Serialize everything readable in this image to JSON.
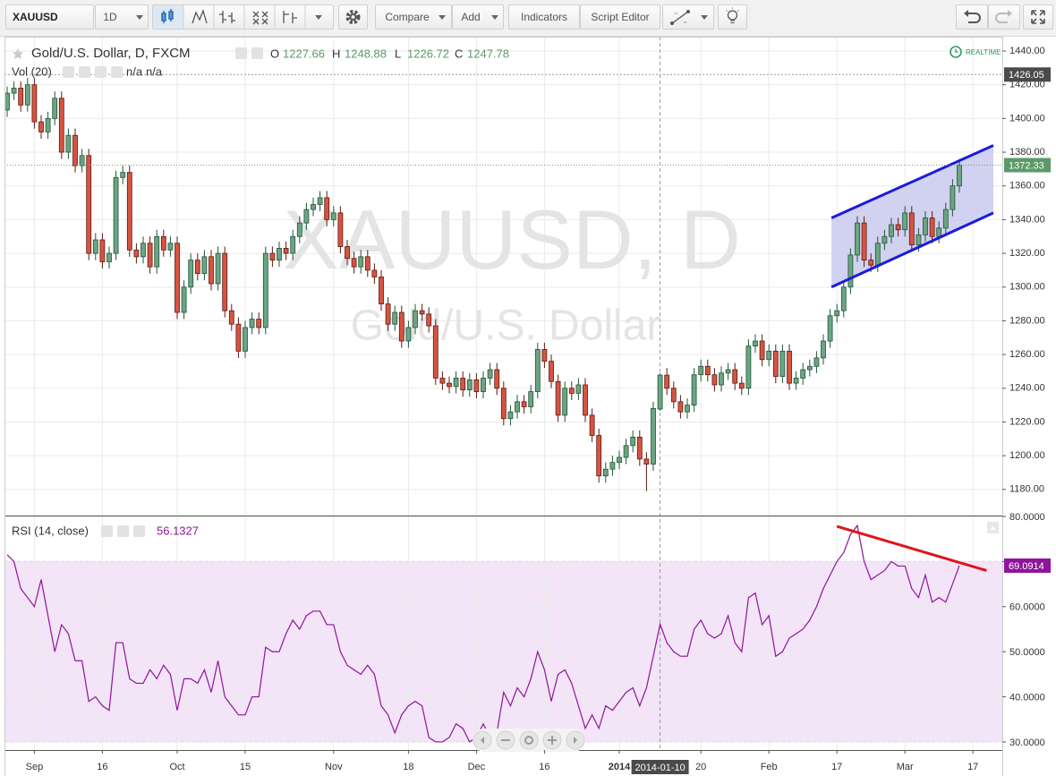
{
  "toolbar": {
    "symbol": "XAUUSD",
    "interval": "1D",
    "buttons": [
      "Compare",
      "Add",
      "Indicators",
      "Script Editor"
    ]
  },
  "chart_data": [
    {
      "type": "candlestick",
      "title": "Gold/U.S. Dollar, D, FXCM",
      "watermark": "XAUUSD, D",
      "watermark_subtitle": "Gold/U.S. Dollar",
      "ohlc_labels": [
        "O",
        "H",
        "L",
        "C"
      ],
      "volume_label": "Vol (20)",
      "volume_values": [
        "n/a",
        "n/a"
      ],
      "realtime_label": "REALTIME",
      "colors": {
        "up": "#6ba583",
        "down": "#d75442",
        "up_border": "#225437",
        "down_border": "#5b1a13"
      },
      "candles": [
        [
          1405,
          1419,
          1401,
          1415
        ],
        [
          1415,
          1422,
          1411,
          1418
        ],
        [
          1418,
          1422,
          1404,
          1408
        ],
        [
          1408,
          1424,
          1404,
          1420
        ],
        [
          1420,
          1424,
          1394,
          1398
        ],
        [
          1398,
          1402,
          1388,
          1392
        ],
        [
          1392,
          1404,
          1388,
          1400
        ],
        [
          1400,
          1416,
          1396,
          1412
        ],
        [
          1412,
          1416,
          1376,
          1380
        ],
        [
          1380,
          1394,
          1376,
          1390
        ],
        [
          1390,
          1394,
          1368,
          1372
        ],
        [
          1372,
          1382,
          1368,
          1378
        ],
        [
          1378,
          1382,
          1316,
          1320
        ],
        [
          1320,
          1332,
          1316,
          1328
        ],
        [
          1328,
          1332,
          1311,
          1315
        ],
        [
          1315,
          1324,
          1311,
          1320
        ],
        [
          1320,
          1369,
          1316,
          1365
        ],
        [
          1365,
          1372,
          1361,
          1368
        ],
        [
          1368,
          1372,
          1318,
          1322
        ],
        [
          1322,
          1326,
          1314,
          1318
        ],
        [
          1318,
          1330,
          1314,
          1326
        ],
        [
          1326,
          1330,
          1308,
          1312
        ],
        [
          1312,
          1334,
          1308,
          1330
        ],
        [
          1330,
          1334,
          1318,
          1322
        ],
        [
          1322,
          1330,
          1318,
          1326
        ],
        [
          1326,
          1330,
          1281,
          1285
        ],
        [
          1285,
          1304,
          1281,
          1300
        ],
        [
          1300,
          1320,
          1296,
          1316
        ],
        [
          1316,
          1320,
          1304,
          1308
        ],
        [
          1308,
          1322,
          1304,
          1318
        ],
        [
          1318,
          1322,
          1298,
          1302
        ],
        [
          1302,
          1324,
          1298,
          1320
        ],
        [
          1320,
          1324,
          1282,
          1286
        ],
        [
          1286,
          1290,
          1274,
          1278
        ],
        [
          1278,
          1282,
          1258,
          1262
        ],
        [
          1262,
          1280,
          1258,
          1276
        ],
        [
          1276,
          1285,
          1272,
          1281
        ],
        [
          1281,
          1285,
          1272,
          1276
        ],
        [
          1276,
          1324,
          1272,
          1320
        ],
        [
          1320,
          1324,
          1312,
          1316
        ],
        [
          1316,
          1327,
          1312,
          1323
        ],
        [
          1323,
          1327,
          1316,
          1320
        ],
        [
          1320,
          1334,
          1316,
          1330
        ],
        [
          1330,
          1342,
          1326,
          1338
        ],
        [
          1338,
          1350,
          1334,
          1346
        ],
        [
          1346,
          1353,
          1342,
          1349
        ],
        [
          1349,
          1357,
          1345,
          1353
        ],
        [
          1353,
          1357,
          1336,
          1340
        ],
        [
          1340,
          1348,
          1336,
          1344
        ],
        [
          1344,
          1348,
          1320,
          1324
        ],
        [
          1324,
          1328,
          1313,
          1317
        ],
        [
          1317,
          1321,
          1308,
          1312
        ],
        [
          1312,
          1322,
          1308,
          1318
        ],
        [
          1318,
          1322,
          1306,
          1310
        ],
        [
          1310,
          1314,
          1302,
          1306
        ],
        [
          1306,
          1310,
          1286,
          1290
        ],
        [
          1290,
          1294,
          1274,
          1278
        ],
        [
          1278,
          1289,
          1274,
          1285
        ],
        [
          1285,
          1289,
          1264,
          1268
        ],
        [
          1268,
          1280,
          1264,
          1276
        ],
        [
          1276,
          1290,
          1272,
          1286
        ],
        [
          1286,
          1290,
          1280,
          1284
        ],
        [
          1284,
          1288,
          1273,
          1277
        ],
        [
          1277,
          1281,
          1242,
          1246
        ],
        [
          1246,
          1250,
          1239,
          1243
        ],
        [
          1243,
          1247,
          1237,
          1241
        ],
        [
          1241,
          1250,
          1237,
          1246
        ],
        [
          1246,
          1250,
          1235,
          1239
        ],
        [
          1239,
          1249,
          1235,
          1245
        ],
        [
          1245,
          1249,
          1234,
          1238
        ],
        [
          1238,
          1250,
          1234,
          1246
        ],
        [
          1246,
          1255,
          1242,
          1251
        ],
        [
          1251,
          1255,
          1236,
          1240
        ],
        [
          1240,
          1244,
          1218,
          1222
        ],
        [
          1222,
          1230,
          1218,
          1226
        ],
        [
          1226,
          1236,
          1222,
          1232
        ],
        [
          1232,
          1236,
          1225,
          1229
        ],
        [
          1229,
          1242,
          1225,
          1238
        ],
        [
          1238,
          1267,
          1234,
          1263
        ],
        [
          1263,
          1267,
          1252,
          1256
        ],
        [
          1256,
          1260,
          1240,
          1244
        ],
        [
          1244,
          1248,
          1220,
          1224
        ],
        [
          1224,
          1244,
          1220,
          1240
        ],
        [
          1240,
          1244,
          1233,
          1237
        ],
        [
          1237,
          1246,
          1233,
          1242
        ],
        [
          1242,
          1246,
          1220,
          1224
        ],
        [
          1224,
          1228,
          1208,
          1212
        ],
        [
          1212,
          1216,
          1184,
          1188
        ],
        [
          1188,
          1196,
          1184,
          1192
        ],
        [
          1192,
          1200,
          1188,
          1196
        ],
        [
          1196,
          1203,
          1192,
          1199
        ],
        [
          1199,
          1210,
          1195,
          1206
        ],
        [
          1206,
          1215,
          1202,
          1211
        ],
        [
          1211,
          1215,
          1194,
          1198
        ],
        [
          1198,
          1202,
          1179,
          1195
        ],
        [
          1195,
          1232,
          1191,
          1228
        ],
        [
          1227.66,
          1248.88,
          1226.72,
          1247.78
        ],
        [
          1247.78,
          1252,
          1236,
          1240
        ],
        [
          1240,
          1244,
          1228,
          1232
        ],
        [
          1232,
          1236,
          1222,
          1226
        ],
        [
          1226,
          1234,
          1222,
          1230
        ],
        [
          1230,
          1252,
          1226,
          1248
        ],
        [
          1248,
          1257,
          1244,
          1253
        ],
        [
          1253,
          1257,
          1244,
          1248
        ],
        [
          1248,
          1252,
          1238,
          1242
        ],
        [
          1242,
          1253,
          1238,
          1249
        ],
        [
          1249,
          1255,
          1245,
          1251
        ],
        [
          1251,
          1255,
          1239,
          1243
        ],
        [
          1243,
          1247,
          1236,
          1240
        ],
        [
          1240,
          1269,
          1236,
          1265
        ],
        [
          1265,
          1272,
          1261,
          1268
        ],
        [
          1268,
          1272,
          1253,
          1257
        ],
        [
          1257,
          1266,
          1253,
          1262
        ],
        [
          1262,
          1266,
          1243,
          1247
        ],
        [
          1247,
          1266,
          1243,
          1262
        ],
        [
          1262,
          1266,
          1239,
          1243
        ],
        [
          1243,
          1250,
          1239,
          1246
        ],
        [
          1246,
          1255,
          1242,
          1251
        ],
        [
          1251,
          1257,
          1247,
          1253
        ],
        [
          1253,
          1262,
          1249,
          1258
        ],
        [
          1258,
          1272,
          1254,
          1268
        ],
        [
          1268,
          1287,
          1264,
          1283
        ],
        [
          1283,
          1290,
          1279,
          1286
        ],
        [
          1286,
          1304,
          1282,
          1300
        ],
        [
          1300,
          1323,
          1296,
          1319
        ],
        [
          1319,
          1342,
          1315,
          1338
        ],
        [
          1338,
          1342,
          1312,
          1316
        ],
        [
          1316,
          1320,
          1309,
          1313
        ],
        [
          1313,
          1330,
          1309,
          1326
        ],
        [
          1326,
          1334,
          1322,
          1330
        ],
        [
          1330,
          1341,
          1326,
          1337
        ],
        [
          1337,
          1341,
          1330,
          1334
        ],
        [
          1334,
          1348,
          1330,
          1344
        ],
        [
          1344,
          1348,
          1321,
          1325
        ],
        [
          1325,
          1335,
          1321,
          1331
        ],
        [
          1331,
          1345,
          1327,
          1341
        ],
        [
          1341,
          1345,
          1326,
          1330
        ],
        [
          1330,
          1339,
          1326,
          1335
        ],
        [
          1335,
          1350,
          1331,
          1346
        ],
        [
          1346,
          1364,
          1342,
          1360
        ],
        [
          1360,
          1376,
          1356,
          1372.33
        ]
      ],
      "ylim": [
        1164.5,
        1448.5
      ],
      "yticks": [
        {
          "value": 1180,
          "label": "1180.00"
        },
        {
          "value": 1200,
          "label": "1200.00"
        },
        {
          "value": 1220,
          "label": "1220.00"
        },
        {
          "value": 1240,
          "label": "1240.00"
        },
        {
          "value": 1260,
          "label": "1260.00"
        },
        {
          "value": 1280,
          "label": "1280.00"
        },
        {
          "value": 1300,
          "label": "1300.00"
        },
        {
          "value": 1320,
          "label": "1320.00"
        },
        {
          "value": 1340,
          "label": "1340.00"
        },
        {
          "value": 1360,
          "label": "1360.00"
        },
        {
          "value": 1380,
          "label": "1380.00"
        },
        {
          "value": 1400,
          "label": "1400.00"
        },
        {
          "value": 1420,
          "label": "1420.00"
        },
        {
          "value": 1440,
          "label": "1440.00"
        }
      ],
      "xticks": [
        {
          "value": 4,
          "label": "Sep"
        },
        {
          "value": 14,
          "label": "16"
        },
        {
          "value": 25,
          "label": "Oct"
        },
        {
          "value": 35,
          "label": "15"
        },
        {
          "value": 48,
          "label": "Nov"
        },
        {
          "value": 59,
          "label": "18"
        },
        {
          "value": 69,
          "label": "Dec"
        },
        {
          "value": 79,
          "label": "16"
        },
        {
          "value": 90,
          "label": "2014"
        },
        {
          "value": 102,
          "label": "20"
        },
        {
          "value": 112,
          "label": "Feb"
        },
        {
          "value": 122,
          "label": "17"
        },
        {
          "value": 132,
          "label": "Mar"
        },
        {
          "value": 142,
          "label": "17"
        }
      ],
      "crosshair": {
        "index": {
          "value": 96,
          "label": "2014-01-10"
        },
        "price": 1426.05
      },
      "grid": true,
      "channel": {
        "color": "#1b1bdb",
        "fill": "#c9c9ed",
        "upper": [
          [
            121.2,
            1341
          ],
          [
            145,
            1384
          ]
        ],
        "lower": [
          [
            121.2,
            1300
          ],
          [
            145,
            1344
          ]
        ]
      }
    },
    {
      "type": "line",
      "title": "RSI (14, close)",
      "color": "#8e1599",
      "values": [
        71.5,
        70,
        64,
        62,
        60,
        66,
        58,
        50,
        56,
        54,
        48,
        48,
        39,
        40,
        38,
        37,
        52,
        52,
        44,
        43,
        43,
        46,
        44,
        47,
        45,
        37,
        44,
        44,
        43,
        46,
        41,
        48,
        40,
        38,
        36,
        36,
        40,
        40,
        51,
        50,
        50,
        54,
        57,
        55,
        58,
        59,
        59,
        56,
        56,
        50,
        47,
        46,
        45,
        47,
        45,
        38,
        36,
        32,
        36,
        38,
        39,
        38,
        31,
        30,
        30,
        31,
        34,
        33,
        30,
        31,
        34,
        31,
        32,
        41,
        38,
        42,
        40,
        44,
        50,
        46,
        39,
        45,
        46,
        43,
        38,
        33,
        36,
        33,
        38,
        37,
        39,
        41,
        42,
        38,
        42,
        49,
        56.1327,
        52,
        50,
        49,
        49,
        55,
        57,
        54,
        53,
        54,
        58,
        52,
        50,
        62,
        63,
        56,
        58,
        49,
        50,
        53,
        54,
        55,
        57,
        60,
        64,
        67,
        70,
        72,
        76,
        78,
        70,
        66,
        67,
        68,
        70,
        69,
        69,
        64,
        62,
        67,
        61,
        62,
        61,
        65,
        69.0914
      ],
      "ylim": [
        28.2,
        80
      ],
      "yticks": [
        {
          "value": 30,
          "label": "30.0000"
        },
        {
          "value": 40,
          "label": "40.0000"
        },
        {
          "value": 50,
          "label": "50.0000"
        },
        {
          "value": 60,
          "label": "60.0000"
        },
        {
          "value": 70,
          "label": "70.0000"
        },
        {
          "value": 80,
          "label": "80.0000"
        }
      ],
      "band": [
        30,
        70
      ],
      "band_color": "#f3e4f8",
      "trendline": {
        "color": "#e0141b",
        "points": [
          [
            122,
            77.8
          ],
          [
            144,
            68
          ]
        ]
      }
    }
  ]
}
